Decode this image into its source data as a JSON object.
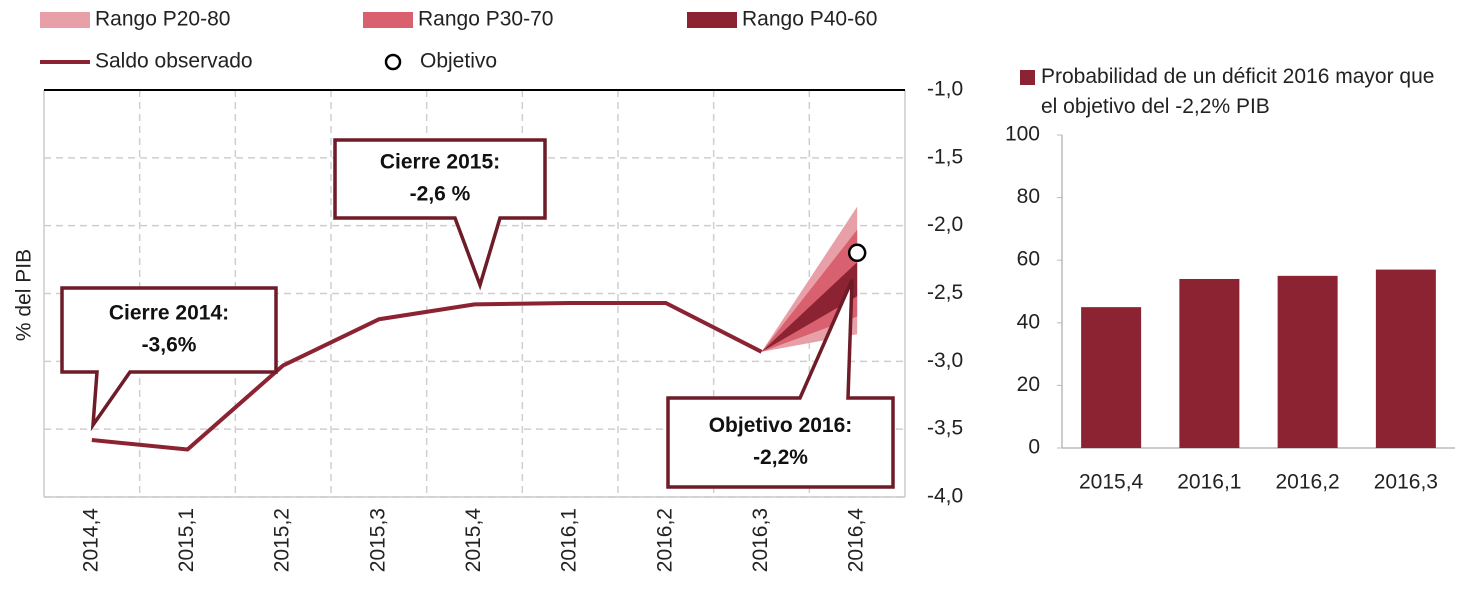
{
  "chart_data": [
    {
      "type": "fan-line",
      "y_label": "% del PIB",
      "categories": [
        "2014,4",
        "2015,1",
        "2015,2",
        "2015,3",
        "2015,4",
        "2016,1",
        "2016,2",
        "2016,3",
        "2016,4"
      ],
      "series": [
        {
          "name": "Saldo observado",
          "color": "#8b2332",
          "values": [
            -3.58,
            -3.65,
            -3.03,
            -2.69,
            -2.58,
            -2.57,
            -2.57,
            -2.93,
            null
          ]
        }
      ],
      "bands": [
        {
          "name": "Rango P20-80",
          "color": "#e8a0a8",
          "lower": [
            null,
            null,
            null,
            null,
            null,
            null,
            null,
            -2.93,
            -2.8
          ],
          "upper": [
            null,
            null,
            null,
            null,
            null,
            null,
            null,
            -2.93,
            -1.86
          ]
        },
        {
          "name": "Rango P30-70",
          "color": "#d9606e",
          "lower": [
            null,
            null,
            null,
            null,
            null,
            null,
            null,
            -2.93,
            -2.67
          ],
          "upper": [
            null,
            null,
            null,
            null,
            null,
            null,
            null,
            -2.93,
            -2.03
          ]
        },
        {
          "name": "Rango P40-60",
          "color": "#8b2332",
          "lower": [
            null,
            null,
            null,
            null,
            null,
            null,
            null,
            -2.93,
            -2.52
          ],
          "upper": [
            null,
            null,
            null,
            null,
            null,
            null,
            null,
            -2.93,
            -2.27
          ]
        }
      ],
      "target": {
        "name": "Objetivo",
        "category_index": 8,
        "value": -2.2
      },
      "annotations": [
        {
          "lines": [
            "Cierre 2014:",
            "-3,6%"
          ]
        },
        {
          "lines": [
            "Cierre 2015:",
            "-2,6 %"
          ]
        },
        {
          "lines": [
            "Objetivo 2016:",
            "-2,2%"
          ]
        }
      ],
      "ylim": [
        -4,
        -1
      ],
      "yticks": [
        {
          "value": -1,
          "label": "-1,0"
        },
        {
          "value": -1.5,
          "label": "-1,5"
        },
        {
          "value": -2,
          "label": "-2,0"
        },
        {
          "value": -2.5,
          "label": "-2,5"
        },
        {
          "value": -3,
          "label": "-3,0"
        },
        {
          "value": -3.5,
          "label": "-3,5"
        },
        {
          "value": -4,
          "label": "-4,0"
        }
      ],
      "grid": true
    },
    {
      "type": "bar",
      "categories": [
        "2015,4",
        "2016,1",
        "2016,2",
        "2016,3"
      ],
      "series": [
        {
          "name": "Probabilidad de un déficit 2016 mayor que el objetivo del -2,2% PIB",
          "color": "#8b2332",
          "values": [
            45,
            54,
            55,
            57
          ]
        }
      ],
      "ylim": [
        0,
        100
      ],
      "yticks": [
        0,
        20,
        40,
        60,
        80,
        100
      ]
    }
  ]
}
